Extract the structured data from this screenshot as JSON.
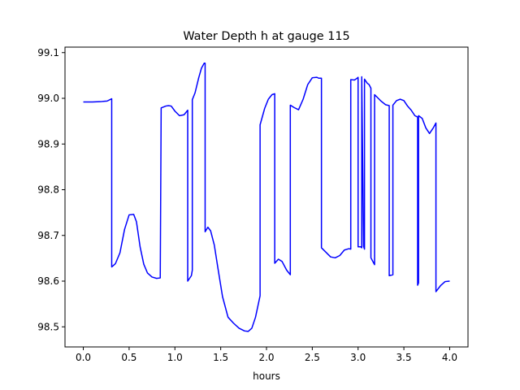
{
  "chart_data": {
    "type": "line",
    "title": "Water Depth h at gauge 115",
    "xlabel": "hours",
    "ylabel": "",
    "xlim": [
      -0.2,
      4.2
    ],
    "ylim": [
      98.456,
      99.112
    ],
    "xticks": [
      0.0,
      0.5,
      1.0,
      1.5,
      2.0,
      2.5,
      3.0,
      3.5,
      4.0
    ],
    "xtick_labels": [
      "0.0",
      "0.5",
      "1.0",
      "1.5",
      "2.0",
      "2.5",
      "3.0",
      "3.5",
      "4.0"
    ],
    "yticks": [
      98.5,
      98.6,
      98.7,
      98.8,
      98.9,
      99.0,
      99.1
    ],
    "ytick_labels": [
      "98.5",
      "98.6",
      "98.7",
      "98.8",
      "98.9",
      "99.0",
      "99.1"
    ],
    "grid": false,
    "legend": "none",
    "series": [
      {
        "color": "#0000ff",
        "x": [
          0.0,
          0.1,
          0.2,
          0.26,
          0.31,
          0.31,
          0.35,
          0.4,
          0.45,
          0.5,
          0.55,
          0.58,
          0.62,
          0.66,
          0.7,
          0.75,
          0.8,
          0.84,
          0.85,
          0.85,
          0.9,
          0.93,
          0.96,
          1.0,
          1.05,
          1.1,
          1.14,
          1.14,
          1.18,
          1.19,
          1.19,
          1.22,
          1.26,
          1.29,
          1.32,
          1.33,
          1.33,
          1.36,
          1.39,
          1.43,
          1.47,
          1.52,
          1.58,
          1.64,
          1.7,
          1.76,
          1.8,
          1.84,
          1.88,
          1.93,
          1.93,
          1.98,
          2.02,
          2.06,
          2.09,
          2.09,
          2.13,
          2.17,
          2.22,
          2.26,
          2.26,
          2.3,
          2.35,
          2.4,
          2.45,
          2.5,
          2.55,
          2.57,
          2.6,
          2.6,
          2.65,
          2.7,
          2.75,
          2.8,
          2.85,
          2.9,
          2.92,
          2.92,
          2.96,
          2.99,
          3.0,
          3.0,
          3.03,
          3.04,
          3.04,
          3.06,
          3.07,
          3.07,
          3.1,
          3.12,
          3.14,
          3.14,
          3.18,
          3.18,
          3.22,
          3.25,
          3.3,
          3.34,
          3.34,
          3.38,
          3.38,
          3.42,
          3.46,
          3.5,
          3.54,
          3.58,
          3.62,
          3.65,
          3.65,
          3.66,
          3.66,
          3.7,
          3.74,
          3.78,
          3.82,
          3.85,
          3.85,
          3.9,
          3.95,
          4.0
        ],
        "y": [
          98.992,
          98.992,
          98.993,
          98.994,
          98.999,
          98.631,
          98.638,
          98.662,
          98.713,
          98.745,
          98.746,
          98.73,
          98.675,
          98.637,
          98.618,
          98.609,
          98.606,
          98.607,
          98.979,
          98.979,
          98.983,
          98.984,
          98.983,
          98.972,
          98.962,
          98.964,
          98.974,
          98.6,
          98.612,
          98.624,
          98.997,
          99.012,
          99.045,
          99.066,
          99.077,
          99.077,
          98.708,
          98.718,
          98.71,
          98.679,
          98.628,
          98.566,
          98.521,
          98.508,
          98.497,
          98.491,
          98.49,
          98.497,
          98.521,
          98.568,
          98.942,
          98.978,
          98.998,
          99.008,
          99.01,
          98.639,
          98.648,
          98.643,
          98.624,
          98.614,
          98.985,
          98.98,
          98.975,
          98.998,
          99.03,
          99.045,
          99.046,
          99.044,
          99.044,
          98.673,
          98.663,
          98.653,
          98.651,
          98.656,
          98.668,
          98.671,
          98.67,
          99.041,
          99.04,
          99.044,
          99.046,
          98.675,
          98.675,
          98.673,
          99.047,
          98.676,
          98.67,
          99.042,
          99.033,
          99.03,
          99.022,
          98.651,
          98.636,
          99.008,
          99.0,
          98.994,
          98.986,
          98.984,
          98.612,
          98.614,
          98.985,
          98.995,
          98.998,
          98.995,
          98.983,
          98.974,
          98.962,
          98.959,
          98.591,
          98.596,
          98.962,
          98.956,
          98.935,
          98.923,
          98.935,
          98.946,
          98.577,
          98.59,
          98.599,
          98.6
        ]
      }
    ]
  }
}
